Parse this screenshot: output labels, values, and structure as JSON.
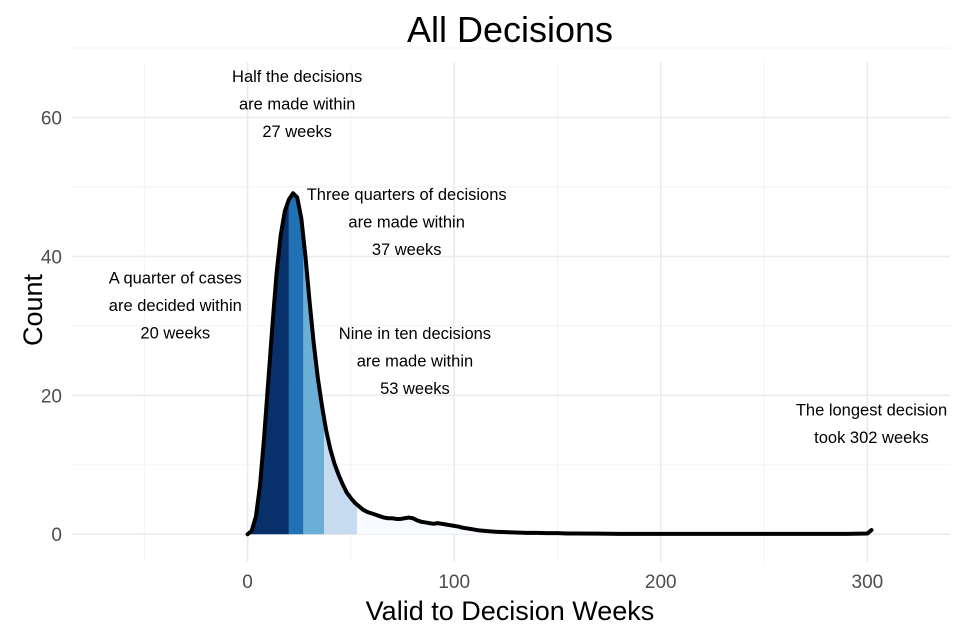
{
  "chart_data": {
    "type": "area",
    "title": "All Decisions",
    "xlabel": "Valid to Decision Weeks",
    "ylabel": "Count",
    "xlim": [
      -85,
      340
    ],
    "ylim": [
      -4,
      68
    ],
    "x_ticks": [
      0,
      100,
      200,
      300
    ],
    "y_ticks": [
      0,
      20,
      40,
      60
    ],
    "grid": true,
    "legend": "none",
    "density": {
      "x": [
        0,
        2,
        4,
        6,
        8,
        10,
        12,
        14,
        16,
        18,
        20,
        22,
        24,
        26,
        28,
        30,
        32,
        34,
        36,
        38,
        40,
        42,
        44,
        46,
        48,
        50,
        52,
        54,
        56,
        58,
        60,
        62,
        64,
        66,
        68,
        70,
        72,
        74,
        76,
        78,
        80,
        82,
        84,
        86,
        88,
        90,
        92,
        94,
        96,
        98,
        100,
        102,
        104,
        106,
        108,
        110,
        112,
        114,
        116,
        118,
        120,
        125,
        130,
        135,
        140,
        145,
        150,
        155,
        160,
        170,
        180,
        190,
        200,
        210,
        220,
        230,
        240,
        250,
        260,
        270,
        280,
        290,
        300,
        302
      ],
      "y": [
        0,
        0.5,
        2.5,
        7,
        14,
        22,
        30,
        37.5,
        43,
        46.5,
        48.2,
        49.1,
        48.5,
        45.5,
        40,
        33.5,
        27.5,
        22.5,
        18.5,
        15,
        12.3,
        10.2,
        8.6,
        7.2,
        6,
        5.2,
        4.5,
        4,
        3.5,
        3.2,
        3,
        2.8,
        2.6,
        2.4,
        2.3,
        2.3,
        2.2,
        2.2,
        2.3,
        2.4,
        2.3,
        2,
        1.8,
        1.7,
        1.6,
        1.5,
        1.6,
        1.5,
        1.4,
        1.3,
        1.2,
        1.1,
        0.95,
        0.85,
        0.75,
        0.65,
        0.55,
        0.5,
        0.45,
        0.4,
        0.35,
        0.3,
        0.25,
        0.2,
        0.2,
        0.15,
        0.15,
        0.1,
        0.1,
        0.08,
        0.05,
        0.05,
        0.05,
        0.05,
        0.05,
        0.05,
        0.05,
        0.05,
        0.05,
        0.05,
        0.05,
        0.05,
        0.1,
        0.6
      ]
    },
    "quantile_bands": [
      {
        "from": 0,
        "to": 20,
        "color": "#08306b"
      },
      {
        "from": 20,
        "to": 27,
        "color": "#2171b5"
      },
      {
        "from": 27,
        "to": 37,
        "color": "#6baed6"
      },
      {
        "from": 37,
        "to": 53,
        "color": "#c6dbef"
      },
      {
        "from": 53,
        "to": 302,
        "color": "#f7fbff"
      }
    ],
    "line_color": "#000000",
    "annotations": [
      {
        "id": "quarter",
        "x": -35,
        "y": 33,
        "lines": [
          "A quarter of cases",
          "are decided within",
          "20 weeks"
        ]
      },
      {
        "id": "half",
        "x": 24,
        "y": 62,
        "lines": [
          "Half the decisions",
          "are made within",
          "27 weeks"
        ]
      },
      {
        "id": "three-quarters",
        "x": 77,
        "y": 45,
        "lines": [
          "Three quarters of decisions",
          "are made within",
          "37 weeks"
        ]
      },
      {
        "id": "nine-in-ten",
        "x": 81,
        "y": 25,
        "lines": [
          "Nine in ten decisions",
          "are made within",
          "53 weeks"
        ]
      },
      {
        "id": "longest",
        "x": 302,
        "y": 16,
        "lines": [
          "The longest decision",
          "took 302 weeks"
        ]
      }
    ]
  }
}
